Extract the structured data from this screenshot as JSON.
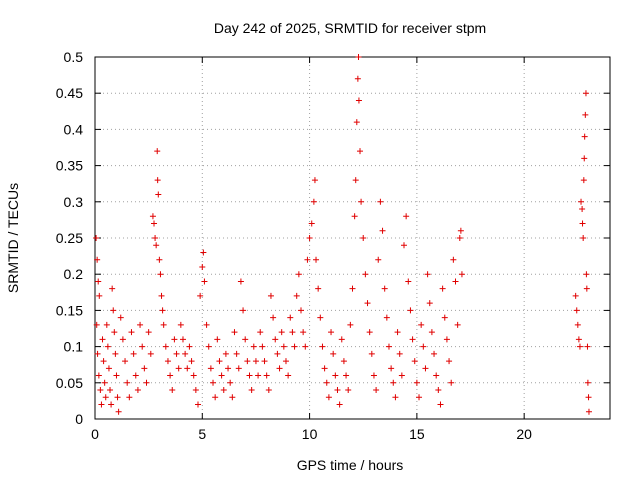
{
  "chart_data": {
    "type": "scatter",
    "title": "Day 242 of 2025, SRMTID for receiver stpm",
    "xlabel": "GPS time / hours",
    "ylabel": "SRMTID / TECUs",
    "xlim": [
      0,
      24
    ],
    "ylim": [
      0,
      0.5
    ],
    "x_ticks": [
      0,
      5,
      10,
      15,
      20
    ],
    "x_tick_labels": [
      "0",
      "5",
      "10",
      "15",
      "20"
    ],
    "y_ticks": [
      0,
      0.05,
      0.1,
      0.15,
      0.2,
      0.25,
      0.3,
      0.35,
      0.4,
      0.45,
      0.5
    ],
    "y_tick_labels": [
      "0",
      "0.05",
      "0.1",
      "0.15",
      "0.2",
      "0.25",
      "0.3",
      "0.35",
      "0.4",
      "0.45",
      "0.5"
    ],
    "grid": true,
    "marker": "+",
    "marker_color": "#e00000",
    "series": [
      {
        "points": [
          [
            0.05,
            0.25
          ],
          [
            0.1,
            0.22
          ],
          [
            0.15,
            0.19
          ],
          [
            0.2,
            0.17
          ],
          [
            0.08,
            0.13
          ],
          [
            0.12,
            0.09
          ],
          [
            0.18,
            0.06
          ],
          [
            0.25,
            0.04
          ],
          [
            0.3,
            0.02
          ],
          [
            0.35,
            0.11
          ],
          [
            0.4,
            0.08
          ],
          [
            0.45,
            0.05
          ],
          [
            0.5,
            0.03
          ],
          [
            0.55,
            0.13
          ],
          [
            0.6,
            0.1
          ],
          [
            0.65,
            0.07
          ],
          [
            0.7,
            0.04
          ],
          [
            0.75,
            0.02
          ],
          [
            0.8,
            0.18
          ],
          [
            0.85,
            0.15
          ],
          [
            0.9,
            0.12
          ],
          [
            0.95,
            0.09
          ],
          [
            1.0,
            0.06
          ],
          [
            1.05,
            0.03
          ],
          [
            1.1,
            0.01
          ],
          [
            1.2,
            0.14
          ],
          [
            1.3,
            0.11
          ],
          [
            1.4,
            0.08
          ],
          [
            1.5,
            0.05
          ],
          [
            1.6,
            0.03
          ],
          [
            1.7,
            0.12
          ],
          [
            1.8,
            0.09
          ],
          [
            1.9,
            0.06
          ],
          [
            2.0,
            0.04
          ],
          [
            2.1,
            0.13
          ],
          [
            2.2,
            0.1
          ],
          [
            2.3,
            0.07
          ],
          [
            2.4,
            0.05
          ],
          [
            2.5,
            0.12
          ],
          [
            2.6,
            0.09
          ],
          [
            2.7,
            0.28
          ],
          [
            2.75,
            0.27
          ],
          [
            2.8,
            0.25
          ],
          [
            2.85,
            0.24
          ],
          [
            2.9,
            0.37
          ],
          [
            2.92,
            0.33
          ],
          [
            2.95,
            0.31
          ],
          [
            3.0,
            0.22
          ],
          [
            3.05,
            0.2
          ],
          [
            3.1,
            0.17
          ],
          [
            3.15,
            0.15
          ],
          [
            3.2,
            0.13
          ],
          [
            3.3,
            0.1
          ],
          [
            3.4,
            0.08
          ],
          [
            3.5,
            0.06
          ],
          [
            3.6,
            0.04
          ],
          [
            3.7,
            0.11
          ],
          [
            3.8,
            0.09
          ],
          [
            3.9,
            0.07
          ],
          [
            4.0,
            0.13
          ],
          [
            4.1,
            0.11
          ],
          [
            4.2,
            0.09
          ],
          [
            4.3,
            0.07
          ],
          [
            4.4,
            0.1
          ],
          [
            4.5,
            0.08
          ],
          [
            4.6,
            0.06
          ],
          [
            4.7,
            0.04
          ],
          [
            4.8,
            0.02
          ],
          [
            4.9,
            0.17
          ],
          [
            5.0,
            0.21
          ],
          [
            5.05,
            0.23
          ],
          [
            5.1,
            0.19
          ],
          [
            5.2,
            0.13
          ],
          [
            5.3,
            0.1
          ],
          [
            5.4,
            0.07
          ],
          [
            5.5,
            0.05
          ],
          [
            5.6,
            0.03
          ],
          [
            5.7,
            0.11
          ],
          [
            5.8,
            0.08
          ],
          [
            5.9,
            0.06
          ],
          [
            6.0,
            0.04
          ],
          [
            6.1,
            0.09
          ],
          [
            6.2,
            0.07
          ],
          [
            6.3,
            0.05
          ],
          [
            6.4,
            0.03
          ],
          [
            6.5,
            0.12
          ],
          [
            6.6,
            0.09
          ],
          [
            6.7,
            0.07
          ],
          [
            6.8,
            0.19
          ],
          [
            6.9,
            0.15
          ],
          [
            7.0,
            0.11
          ],
          [
            7.1,
            0.08
          ],
          [
            7.2,
            0.06
          ],
          [
            7.3,
            0.04
          ],
          [
            7.4,
            0.1
          ],
          [
            7.5,
            0.08
          ],
          [
            7.6,
            0.06
          ],
          [
            7.7,
            0.12
          ],
          [
            7.8,
            0.1
          ],
          [
            7.9,
            0.08
          ],
          [
            8.0,
            0.06
          ],
          [
            8.1,
            0.04
          ],
          [
            8.2,
            0.17
          ],
          [
            8.3,
            0.14
          ],
          [
            8.4,
            0.11
          ],
          [
            8.5,
            0.09
          ],
          [
            8.6,
            0.07
          ],
          [
            8.7,
            0.12
          ],
          [
            8.8,
            0.1
          ],
          [
            8.9,
            0.08
          ],
          [
            9.0,
            0.06
          ],
          [
            9.1,
            0.14
          ],
          [
            9.2,
            0.12
          ],
          [
            9.3,
            0.1
          ],
          [
            9.4,
            0.17
          ],
          [
            9.5,
            0.2
          ],
          [
            9.6,
            0.15
          ],
          [
            9.7,
            0.12
          ],
          [
            9.8,
            0.1
          ],
          [
            9.9,
            0.22
          ],
          [
            10.0,
            0.25
          ],
          [
            10.1,
            0.27
          ],
          [
            10.2,
            0.3
          ],
          [
            10.25,
            0.33
          ],
          [
            10.3,
            0.22
          ],
          [
            10.4,
            0.18
          ],
          [
            10.5,
            0.14
          ],
          [
            10.6,
            0.1
          ],
          [
            10.7,
            0.07
          ],
          [
            10.8,
            0.05
          ],
          [
            10.9,
            0.03
          ],
          [
            11.0,
            0.12
          ],
          [
            11.1,
            0.09
          ],
          [
            11.2,
            0.06
          ],
          [
            11.3,
            0.04
          ],
          [
            11.4,
            0.02
          ],
          [
            11.5,
            0.11
          ],
          [
            11.6,
            0.08
          ],
          [
            11.7,
            0.06
          ],
          [
            11.8,
            0.04
          ],
          [
            11.9,
            0.13
          ],
          [
            12.0,
            0.18
          ],
          [
            12.1,
            0.28
          ],
          [
            12.15,
            0.33
          ],
          [
            12.2,
            0.41
          ],
          [
            12.25,
            0.47
          ],
          [
            12.28,
            0.5
          ],
          [
            12.3,
            0.44
          ],
          [
            12.35,
            0.37
          ],
          [
            12.4,
            0.3
          ],
          [
            12.5,
            0.25
          ],
          [
            12.6,
            0.2
          ],
          [
            12.7,
            0.16
          ],
          [
            12.8,
            0.12
          ],
          [
            12.9,
            0.09
          ],
          [
            13.0,
            0.06
          ],
          [
            13.1,
            0.04
          ],
          [
            13.2,
            0.22
          ],
          [
            13.3,
            0.3
          ],
          [
            13.4,
            0.26
          ],
          [
            13.5,
            0.18
          ],
          [
            13.6,
            0.14
          ],
          [
            13.7,
            0.1
          ],
          [
            13.8,
            0.07
          ],
          [
            13.9,
            0.05
          ],
          [
            14.0,
            0.03
          ],
          [
            14.1,
            0.12
          ],
          [
            14.2,
            0.09
          ],
          [
            14.3,
            0.06
          ],
          [
            14.4,
            0.24
          ],
          [
            14.5,
            0.28
          ],
          [
            14.6,
            0.19
          ],
          [
            14.7,
            0.15
          ],
          [
            14.8,
            0.11
          ],
          [
            14.9,
            0.08
          ],
          [
            15.0,
            0.05
          ],
          [
            15.1,
            0.03
          ],
          [
            15.2,
            0.13
          ],
          [
            15.3,
            0.1
          ],
          [
            15.4,
            0.07
          ],
          [
            15.5,
            0.2
          ],
          [
            15.6,
            0.16
          ],
          [
            15.7,
            0.12
          ],
          [
            15.8,
            0.09
          ],
          [
            15.9,
            0.06
          ],
          [
            16.0,
            0.04
          ],
          [
            16.1,
            0.02
          ],
          [
            16.2,
            0.18
          ],
          [
            16.3,
            0.14
          ],
          [
            16.4,
            0.11
          ],
          [
            16.5,
            0.08
          ],
          [
            16.6,
            0.05
          ],
          [
            16.7,
            0.22
          ],
          [
            16.8,
            0.19
          ],
          [
            16.9,
            0.13
          ],
          [
            17.0,
            0.25
          ],
          [
            17.05,
            0.26
          ],
          [
            17.1,
            0.2
          ],
          [
            22.4,
            0.17
          ],
          [
            22.45,
            0.15
          ],
          [
            22.5,
            0.13
          ],
          [
            22.55,
            0.11
          ],
          [
            22.6,
            0.1
          ],
          [
            22.65,
            0.3
          ],
          [
            22.7,
            0.29
          ],
          [
            22.72,
            0.27
          ],
          [
            22.75,
            0.25
          ],
          [
            22.78,
            0.33
          ],
          [
            22.8,
            0.36
          ],
          [
            22.82,
            0.39
          ],
          [
            22.85,
            0.42
          ],
          [
            22.88,
            0.45
          ],
          [
            22.9,
            0.2
          ],
          [
            22.92,
            0.18
          ],
          [
            22.95,
            0.1
          ],
          [
            22.97,
            0.05
          ],
          [
            23.0,
            0.03
          ],
          [
            23.02,
            0.01
          ]
        ]
      }
    ]
  }
}
